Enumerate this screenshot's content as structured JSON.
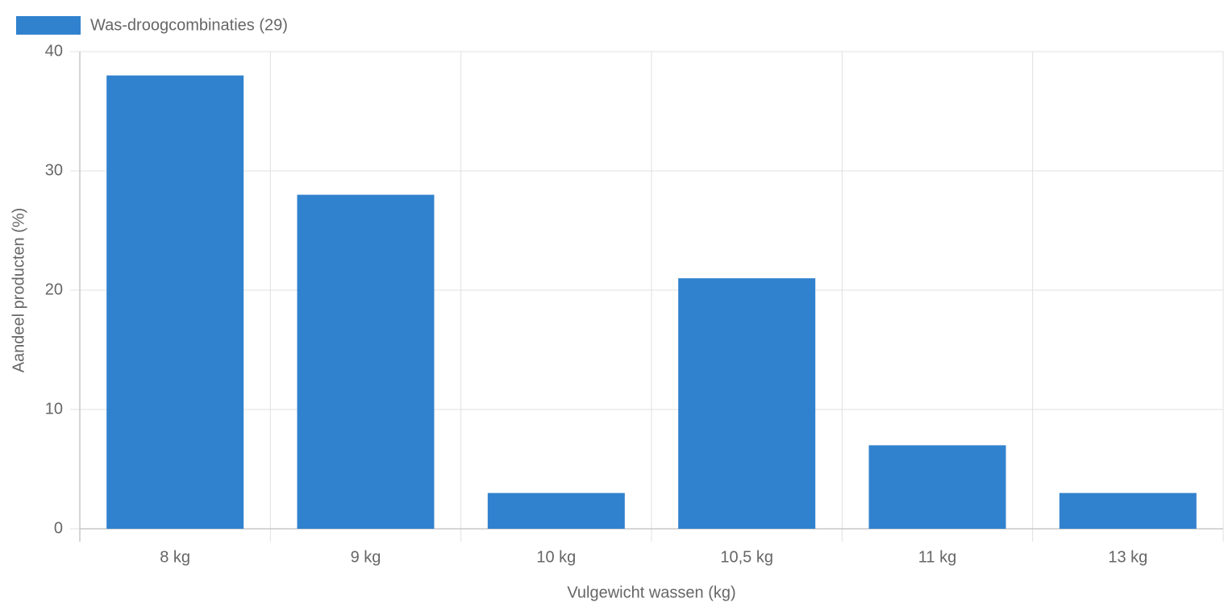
{
  "chart_data": {
    "type": "bar",
    "categories": [
      "8 kg",
      "9 kg",
      "10 kg",
      "10,5 kg",
      "11 kg",
      "13 kg"
    ],
    "series": [
      {
        "name": "Was-droogcombinaties (29)",
        "color": "#3182ce",
        "values": [
          38,
          28,
          3,
          21,
          7,
          3
        ]
      }
    ],
    "x_label": "Vulgewicht wassen (kg)",
    "y_label": "Aandeel producten (%)",
    "ylim": [
      0,
      40
    ],
    "yticks": [
      0,
      10,
      20,
      30,
      40
    ],
    "grid": true,
    "legend": "top-left"
  }
}
